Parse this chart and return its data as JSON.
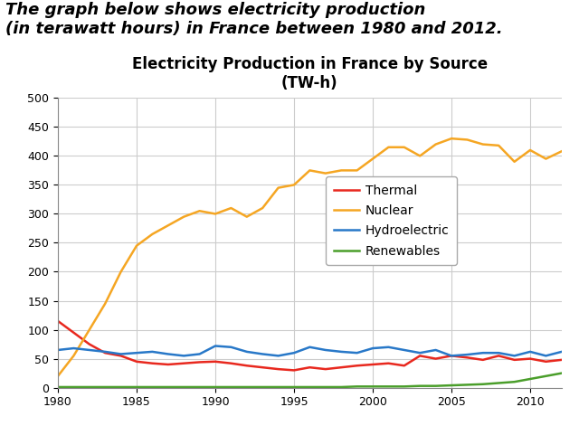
{
  "title_line1": "Electricity Production in France by Source",
  "title_line2": "(TW-h)",
  "header_text": "The graph below shows electricity production\n(in terawatt hours) in France between 1980 and 2012.",
  "years": [
    1980,
    1981,
    1982,
    1983,
    1984,
    1985,
    1986,
    1987,
    1988,
    1989,
    1990,
    1991,
    1992,
    1993,
    1994,
    1995,
    1996,
    1997,
    1998,
    1999,
    2000,
    2001,
    2002,
    2003,
    2004,
    2005,
    2006,
    2007,
    2008,
    2009,
    2010,
    2011,
    2012
  ],
  "thermal": [
    115,
    95,
    75,
    60,
    55,
    45,
    42,
    40,
    42,
    44,
    45,
    42,
    38,
    35,
    32,
    30,
    35,
    32,
    35,
    38,
    40,
    42,
    38,
    55,
    50,
    55,
    52,
    48,
    55,
    48,
    50,
    45,
    48
  ],
  "nuclear": [
    20,
    55,
    100,
    145,
    200,
    245,
    265,
    280,
    295,
    305,
    300,
    310,
    295,
    310,
    345,
    350,
    375,
    370,
    375,
    375,
    395,
    415,
    415,
    400,
    420,
    430,
    428,
    420,
    418,
    390,
    410,
    395,
    408
  ],
  "hydro": [
    65,
    68,
    65,
    62,
    58,
    60,
    62,
    58,
    55,
    58,
    72,
    70,
    62,
    58,
    55,
    60,
    70,
    65,
    62,
    60,
    68,
    70,
    65,
    60,
    65,
    55,
    57,
    60,
    60,
    55,
    62,
    55,
    62
  ],
  "renewables": [
    1,
    1,
    1,
    1,
    1,
    1,
    1,
    1,
    1,
    1,
    1,
    1,
    1,
    1,
    1,
    1,
    1,
    1,
    1,
    2,
    2,
    2,
    2,
    3,
    3,
    4,
    5,
    6,
    8,
    10,
    15,
    20,
    25
  ],
  "thermal_color": "#e8281e",
  "nuclear_color": "#f5a623",
  "hydro_color": "#2878c8",
  "renewables_color": "#4a9e2a",
  "ylim": [
    0,
    500
  ],
  "yticks": [
    0,
    50,
    100,
    150,
    200,
    250,
    300,
    350,
    400,
    450,
    500
  ],
  "xticks": [
    1980,
    1985,
    1990,
    1995,
    2000,
    2005,
    2010
  ],
  "grid_color": "#cccccc",
  "bg_color": "#ffffff",
  "plot_bg_color": "#ffffff",
  "header_fontsize": 13,
  "title_fontsize": 12,
  "tick_fontsize": 9,
  "legend_fontsize": 10
}
